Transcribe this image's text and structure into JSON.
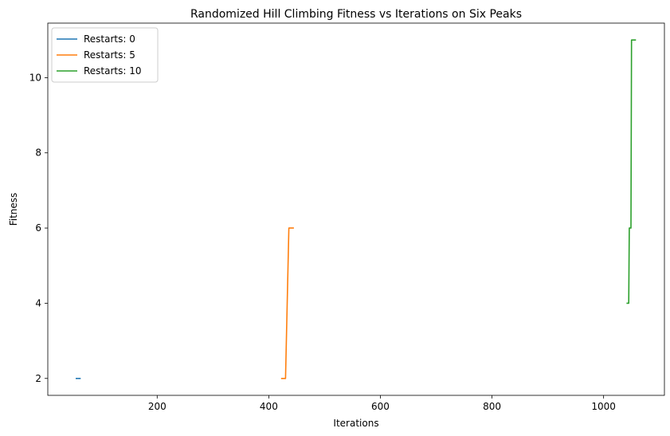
{
  "chart_data": {
    "type": "line",
    "title": "Randomized Hill Climbing Fitness vs Iterations on Six Peaks",
    "xlabel": "Iterations",
    "ylabel": "Fitness",
    "xlim": [
      4,
      1109
    ],
    "ylim": [
      1.55,
      11.45
    ],
    "xticks": [
      200,
      400,
      600,
      800,
      1000
    ],
    "yticks": [
      2,
      4,
      6,
      8,
      10
    ],
    "grid": false,
    "legend_position": "top-left",
    "series": [
      {
        "name": "Restarts: 0",
        "color": "#1f77b4",
        "x": [
          54,
          63
        ],
        "y": [
          2,
          2
        ]
      },
      {
        "name": "Restarts: 5",
        "color": "#ff7f0e",
        "x": [
          422,
          430,
          436,
          436,
          445
        ],
        "y": [
          2,
          2,
          6,
          6,
          6
        ]
      },
      {
        "name": "Restarts: 10",
        "color": "#2ca02c",
        "x": [
          1041,
          1045,
          1046,
          1049,
          1050,
          1058
        ],
        "y": [
          4,
          4,
          6,
          6,
          11,
          11
        ]
      }
    ]
  }
}
